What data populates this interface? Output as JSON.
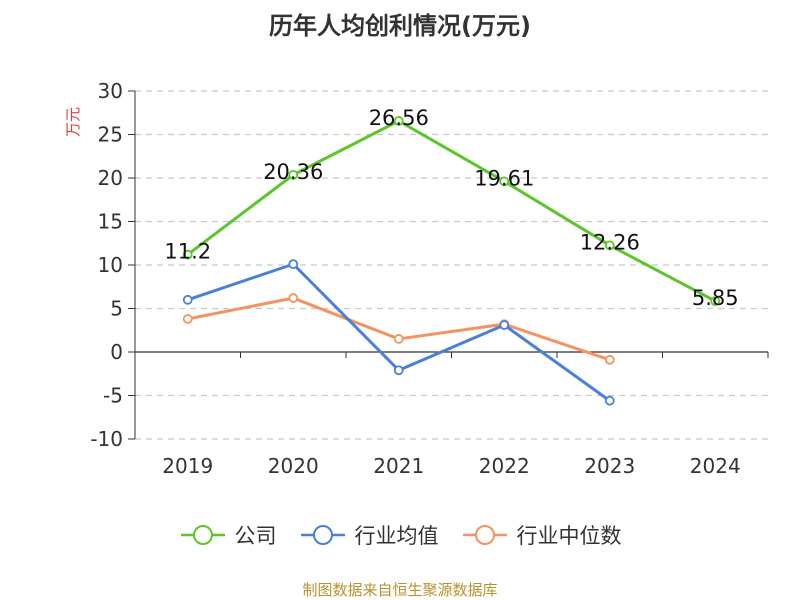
{
  "title": "历年人均创利情况(万元)",
  "source": "制图数据来自恒生聚源数据库",
  "colors": {
    "company": "#5cc52c",
    "industry_avg": "#4a7fd9",
    "industry_median": "#f5925f",
    "axis": "#333333",
    "grid": "#c8c8c8",
    "unit": "#e03c3c",
    "source": "#b8922e"
  },
  "chart_data": {
    "type": "line",
    "title": "历年人均创利情况(万元)",
    "ylabel": "万元",
    "categories": [
      "2019",
      "2020",
      "2021",
      "2022",
      "2023",
      "2024"
    ],
    "ylim": [
      -10,
      30
    ],
    "yticks": [
      30,
      25,
      20,
      15,
      10,
      5,
      0,
      -5,
      -10
    ],
    "grid": true,
    "legend_position": "bottom",
    "series": [
      {
        "name": "公司",
        "key": "company",
        "values": [
          11.2,
          20.36,
          26.56,
          19.61,
          12.26,
          5.85
        ],
        "labels": [
          "11.2",
          "20.36",
          "26.56",
          "19.61",
          "12.26",
          "5.85"
        ]
      },
      {
        "name": "行业均值",
        "key": "industry_avg",
        "values": [
          6.0,
          10.1,
          -2.1,
          3.1,
          -5.6,
          null
        ]
      },
      {
        "name": "行业中位数",
        "key": "industry_median",
        "values": [
          3.8,
          6.2,
          1.5,
          3.2,
          -0.9,
          null
        ]
      }
    ]
  }
}
